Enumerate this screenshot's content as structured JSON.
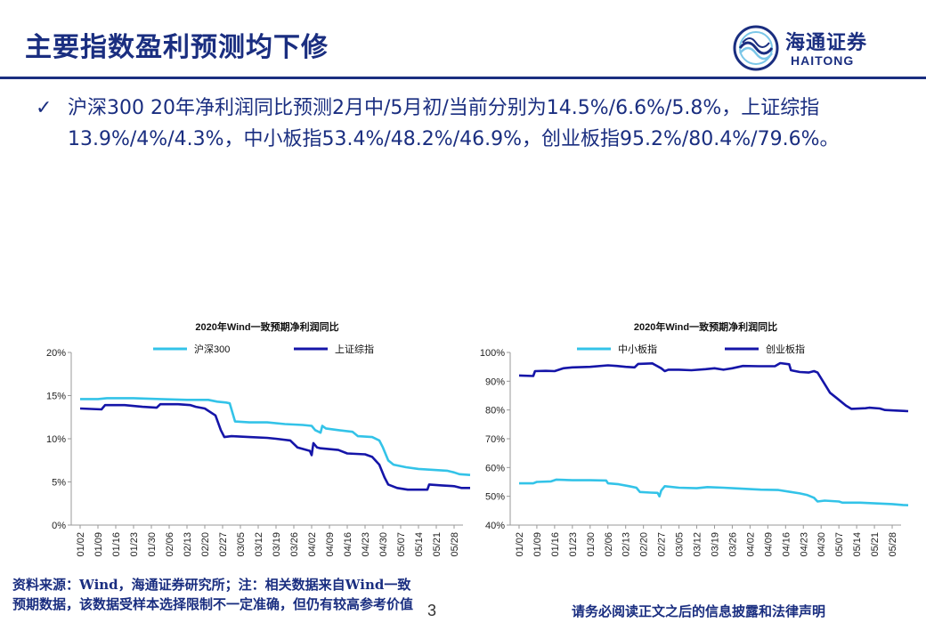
{
  "header": {
    "title": "主要指数盈利预测均下修",
    "logo_cn": "海通证券",
    "logo_en": "HAITONG"
  },
  "bullet": {
    "check": "✓",
    "text": "沪深300 20年净利润同比预测2月中/5月初/当前分别为14.5%/6.6%/5.8%，上证综指13.9%/4%/4.3%，中小板指53.4%/48.2%/46.9%，创业板指95.2%/80.4%/79.6%。"
  },
  "colors": {
    "light": "#33c3e8",
    "dark": "#1515a8",
    "brand": "#1a2e80"
  },
  "dates": [
    "01/02",
    "01/09",
    "01/16",
    "01/23",
    "01/30",
    "02/06",
    "02/13",
    "02/20",
    "02/27",
    "03/05",
    "03/12",
    "03/19",
    "03/26",
    "04/02",
    "04/09",
    "04/16",
    "04/23",
    "04/30",
    "05/07",
    "05/14",
    "05/21",
    "05/28"
  ],
  "chart_data": [
    {
      "type": "line",
      "title": "2020年Wind一致预期净利润同比",
      "ylim": [
        0,
        20
      ],
      "yticks": [
        "0%",
        "5%",
        "10%",
        "15%",
        "20%"
      ],
      "series": [
        {
          "name": "沪深300",
          "color": "#33c3e8",
          "points": [
            [
              0,
              14.6
            ],
            [
              1,
              14.6
            ],
            [
              1.5,
              14.7
            ],
            [
              3,
              14.7
            ],
            [
              4.5,
              14.6
            ],
            [
              6,
              14.5
            ],
            [
              7.2,
              14.5
            ],
            [
              7.7,
              14.3
            ],
            [
              8.2,
              14.2
            ],
            [
              8.4,
              14.1
            ],
            [
              8.7,
              12.0
            ],
            [
              9.5,
              11.9
            ],
            [
              10.5,
              11.9
            ],
            [
              11.5,
              11.7
            ],
            [
              12.5,
              11.6
            ],
            [
              13,
              11.5
            ],
            [
              13.2,
              11.0
            ],
            [
              13.5,
              10.7
            ],
            [
              13.6,
              11.5
            ],
            [
              13.8,
              11.2
            ],
            [
              14.5,
              11.0
            ],
            [
              15.3,
              10.8
            ],
            [
              15.6,
              10.3
            ],
            [
              16.4,
              10.2
            ],
            [
              16.8,
              9.8
            ],
            [
              17.0,
              9.0
            ],
            [
              17.3,
              7.5
            ],
            [
              17.6,
              7.0
            ],
            [
              18.3,
              6.7
            ],
            [
              19,
              6.5
            ],
            [
              19.8,
              6.4
            ],
            [
              20.6,
              6.3
            ],
            [
              21,
              6.1
            ],
            [
              21.3,
              5.9
            ],
            [
              21.9,
              5.8
            ]
          ]
        },
        {
          "name": "上证综指",
          "color": "#1515a8",
          "points": [
            [
              0,
              13.5
            ],
            [
              1.2,
              13.4
            ],
            [
              1.4,
              13.9
            ],
            [
              2.5,
              13.9
            ],
            [
              3.5,
              13.7
            ],
            [
              4.3,
              13.6
            ],
            [
              4.5,
              14.0
            ],
            [
              5.5,
              14.0
            ],
            [
              6.2,
              13.9
            ],
            [
              6.5,
              13.7
            ],
            [
              7.0,
              13.5
            ],
            [
              7.6,
              12.7
            ],
            [
              7.9,
              11.0
            ],
            [
              8.1,
              10.2
            ],
            [
              8.5,
              10.3
            ],
            [
              9.5,
              10.2
            ],
            [
              10.5,
              10.1
            ],
            [
              11.0,
              10.0
            ],
            [
              11.8,
              9.8
            ],
            [
              12.2,
              9.0
            ],
            [
              12.9,
              8.6
            ],
            [
              13.0,
              8.1
            ],
            [
              13.1,
              9.5
            ],
            [
              13.3,
              9.0
            ],
            [
              13.5,
              8.9
            ],
            [
              14.5,
              8.7
            ],
            [
              15.0,
              8.3
            ],
            [
              16.0,
              8.2
            ],
            [
              16.4,
              7.9
            ],
            [
              16.8,
              7.0
            ],
            [
              17.1,
              5.5
            ],
            [
              17.3,
              4.7
            ],
            [
              17.8,
              4.3
            ],
            [
              18.4,
              4.1
            ],
            [
              19.5,
              4.1
            ],
            [
              19.6,
              4.7
            ],
            [
              20.3,
              4.6
            ],
            [
              21,
              4.5
            ],
            [
              21.4,
              4.3
            ],
            [
              21.9,
              4.3
            ]
          ]
        }
      ]
    },
    {
      "type": "line",
      "title": "2020年Wind一致预期净利润同比",
      "ylim": [
        40,
        100
      ],
      "yticks": [
        "40%",
        "50%",
        "60%",
        "70%",
        "80%",
        "90%",
        "100%"
      ],
      "series": [
        {
          "name": "中小板指",
          "color": "#33c3e8",
          "points": [
            [
              0,
              54.5
            ],
            [
              0.8,
              54.5
            ],
            [
              1,
              55
            ],
            [
              1.8,
              55.2
            ],
            [
              2.1,
              55.8
            ],
            [
              3,
              55.6
            ],
            [
              4,
              55.6
            ],
            [
              4.9,
              55.5
            ],
            [
              5.0,
              54.5
            ],
            [
              5.6,
              54.2
            ],
            [
              6.2,
              53.5
            ],
            [
              6.6,
              53
            ],
            [
              6.8,
              51.5
            ],
            [
              7.4,
              51.3
            ],
            [
              7.8,
              51.2
            ],
            [
              7.9,
              50.0
            ],
            [
              8.0,
              52
            ],
            [
              8.2,
              53.5
            ],
            [
              9,
              53
            ],
            [
              10,
              52.8
            ],
            [
              10.6,
              53.2
            ],
            [
              11.5,
              53
            ],
            [
              12.4,
              52.7
            ],
            [
              13.6,
              52.3
            ],
            [
              14.6,
              52.2
            ],
            [
              15.3,
              51.5
            ],
            [
              15.8,
              51
            ],
            [
              16.2,
              50.5
            ],
            [
              16.6,
              49.5
            ],
            [
              16.8,
              48.2
            ],
            [
              17.2,
              48.5
            ],
            [
              18.0,
              48.2
            ],
            [
              18.2,
              47.8
            ],
            [
              19.2,
              47.8
            ],
            [
              20.3,
              47.5
            ],
            [
              21.0,
              47.3
            ],
            [
              21.6,
              47
            ],
            [
              21.9,
              46.9
            ]
          ]
        },
        {
          "name": "创业板指",
          "color": "#1515a8",
          "points": [
            [
              0,
              92
            ],
            [
              0.8,
              91.8
            ],
            [
              0.9,
              93.5
            ],
            [
              1.5,
              93.6
            ],
            [
              2.0,
              93.5
            ],
            [
              2.5,
              94.5
            ],
            [
              3.0,
              94.8
            ],
            [
              4,
              95
            ],
            [
              5,
              95.5
            ],
            [
              5.5,
              95.3
            ],
            [
              6,
              95
            ],
            [
              6.5,
              94.8
            ],
            [
              6.7,
              96
            ],
            [
              7.5,
              96.2
            ],
            [
              7.7,
              95.5
            ],
            [
              8.0,
              94.5
            ],
            [
              8.2,
              93.5
            ],
            [
              8.4,
              94
            ],
            [
              9.0,
              94
            ],
            [
              9.7,
              93.8
            ],
            [
              10.5,
              94.2
            ],
            [
              11.0,
              94.5
            ],
            [
              11.5,
              94
            ],
            [
              12.0,
              94.5
            ],
            [
              12.6,
              95.3
            ],
            [
              13.5,
              95.2
            ],
            [
              14.4,
              95.2
            ],
            [
              14.7,
              96.3
            ],
            [
              15.2,
              95.9
            ],
            [
              15.3,
              93.8
            ],
            [
              15.8,
              93.2
            ],
            [
              16.3,
              93
            ],
            [
              16.6,
              93.5
            ],
            [
              16.8,
              93
            ],
            [
              17.1,
              90
            ],
            [
              17.5,
              86
            ],
            [
              17.9,
              84
            ],
            [
              18.4,
              81.5
            ],
            [
              18.7,
              80.4
            ],
            [
              19.5,
              80.6
            ],
            [
              19.7,
              80.8
            ],
            [
              20.3,
              80.5
            ],
            [
              20.6,
              80
            ],
            [
              21.2,
              79.8
            ],
            [
              21.9,
              79.6
            ]
          ]
        }
      ]
    }
  ],
  "footer": {
    "source_text": "资料来源：Wind，海通证券研究所；注：相关数据来自Wind一致预期数据，该数据受样本选择限制不一定准确，但仍有较高参考价值",
    "page_number": "3",
    "disclaimer": "请务必阅读正文之后的信息披露和法律声明"
  }
}
